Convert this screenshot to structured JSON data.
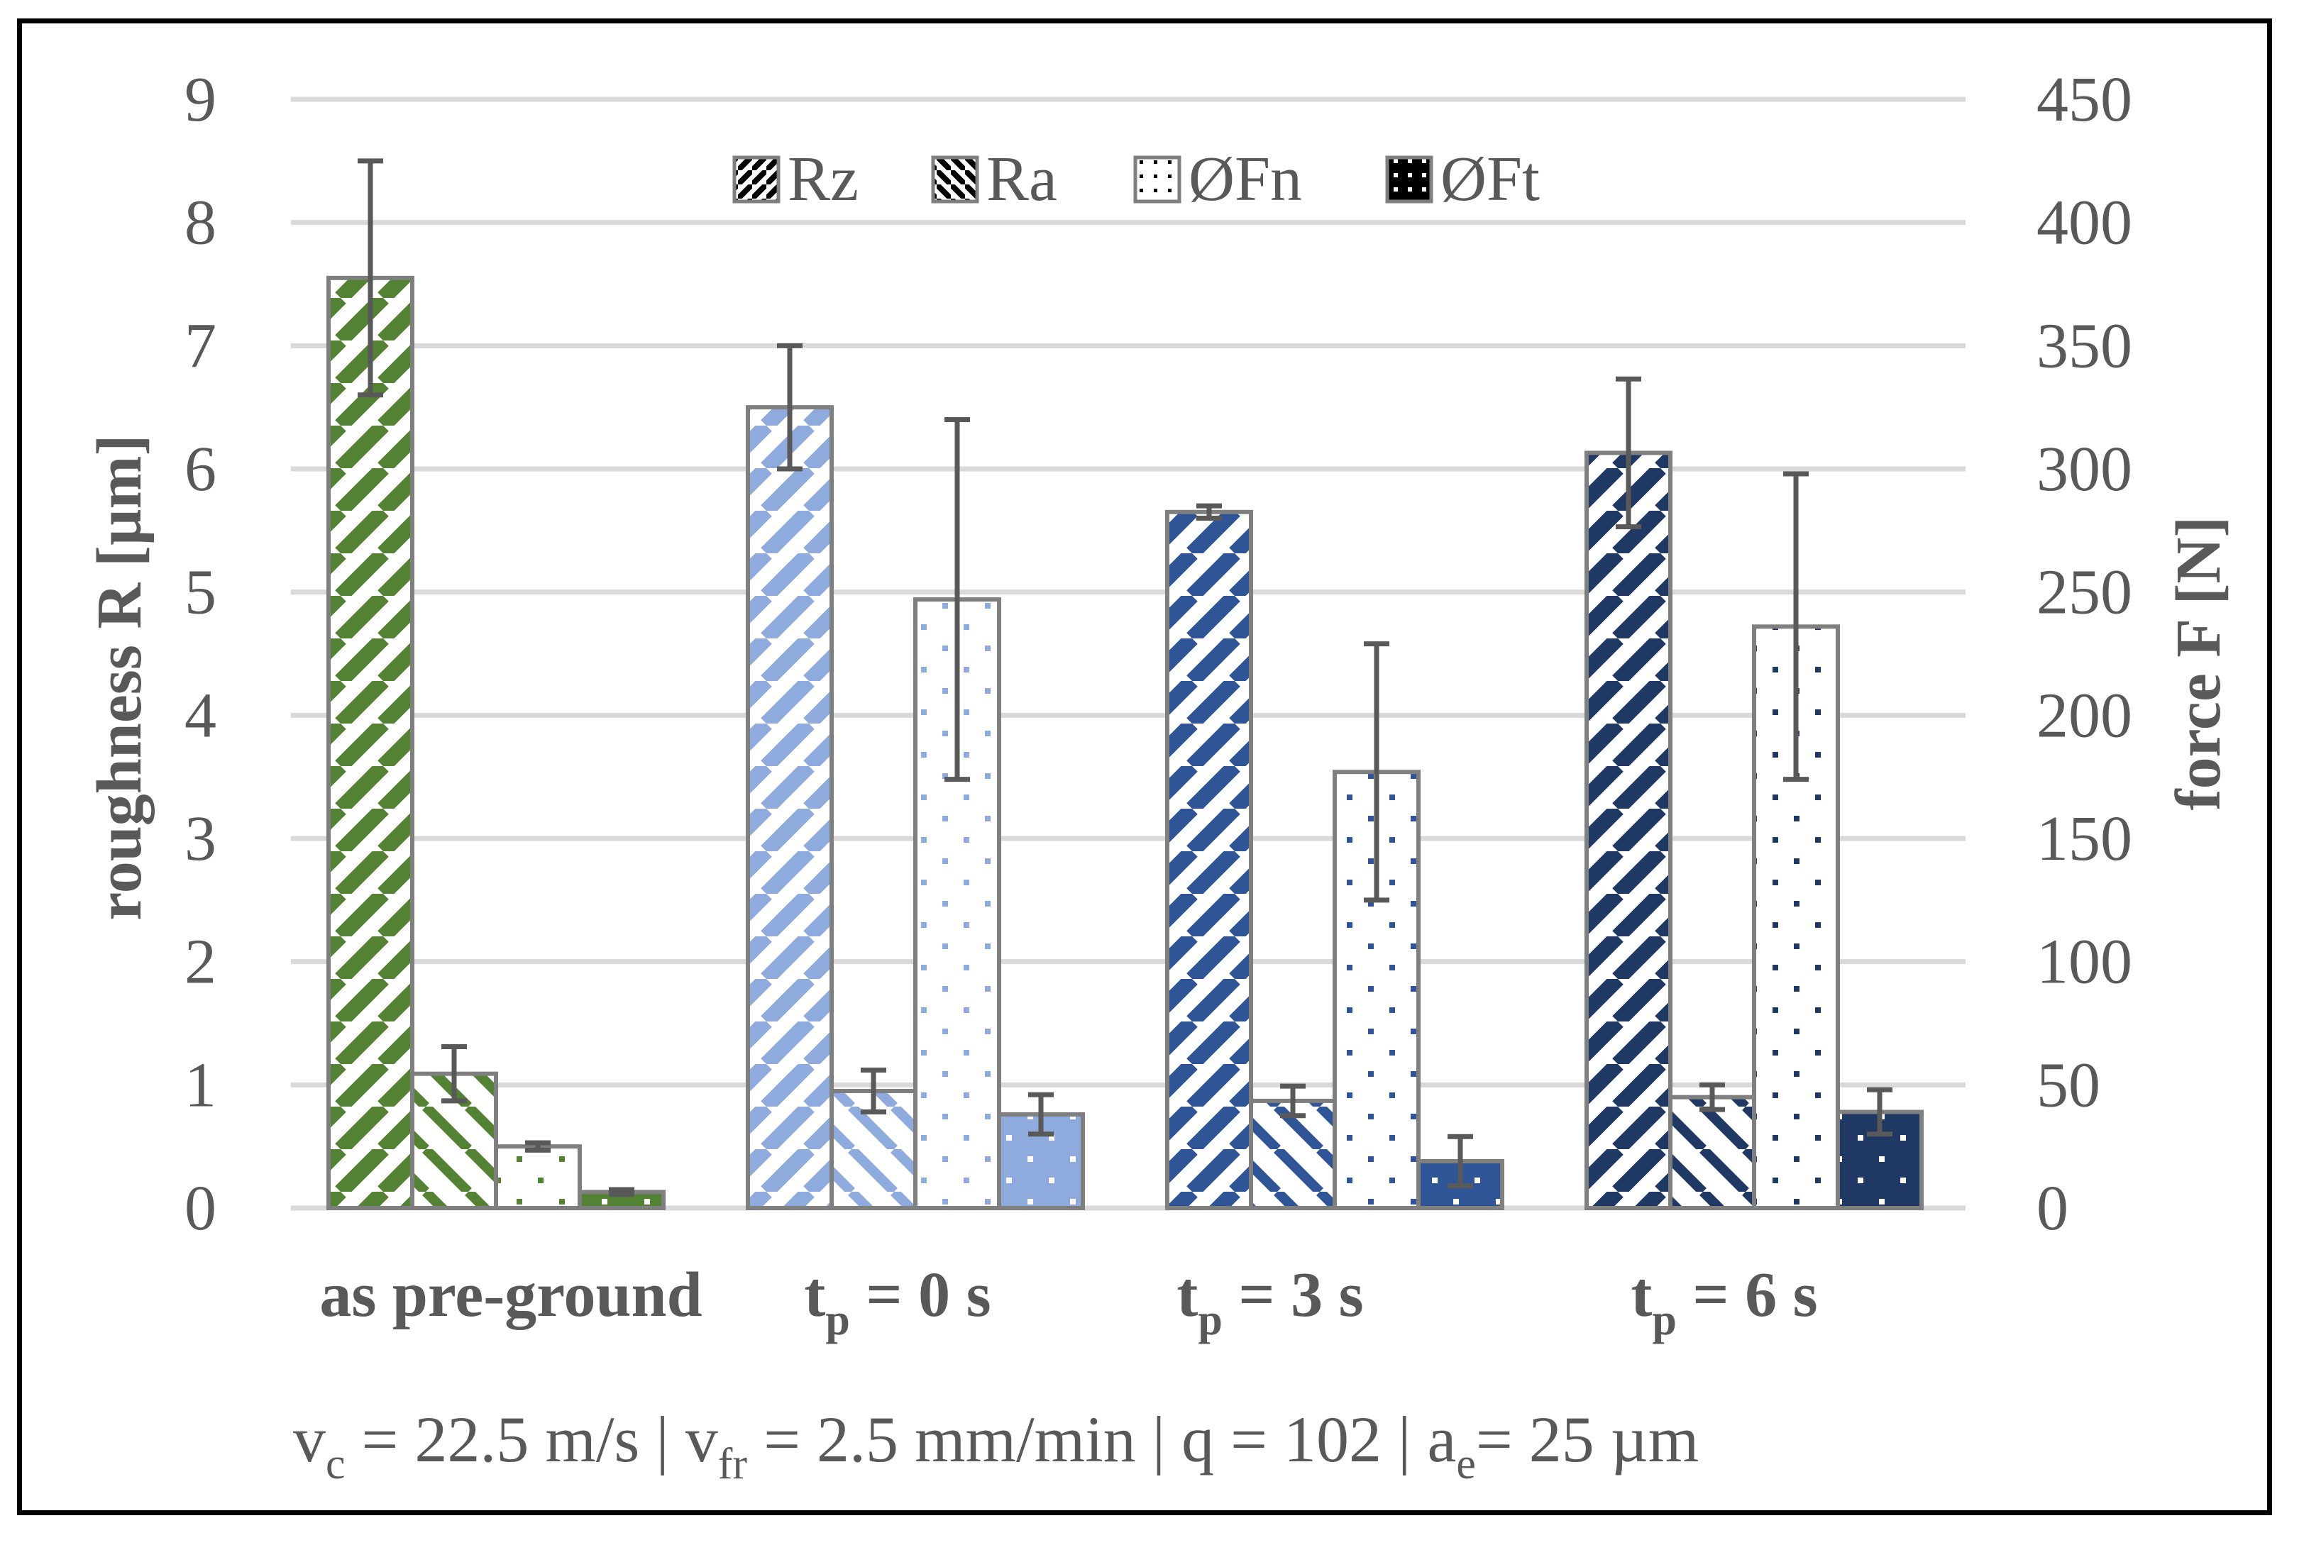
{
  "chart_data": {
    "type": "bar",
    "categories": [
      {
        "main": "as pre-ground",
        "sub": ""
      },
      {
        "main": "t",
        "sub": "p",
        "rest": " = 0 s"
      },
      {
        "main": "t",
        "sub": "p",
        "rest": " = 3 s"
      },
      {
        "main": "t",
        "sub": "p",
        "rest": " = 6 s"
      }
    ],
    "series": [
      {
        "name": "Rz",
        "axis": "left",
        "pattern": "diagonal",
        "values": [
          7.55,
          6.5,
          5.65,
          6.13
        ],
        "errors": [
          0.95,
          0.5,
          0.05,
          0.6
        ]
      },
      {
        "name": "Ra",
        "axis": "left",
        "pattern": "chevron",
        "values": [
          1.09,
          0.95,
          0.87,
          0.9
        ],
        "errors": [
          0.22,
          0.17,
          0.12,
          0.1
        ]
      },
      {
        "name": "ØFn",
        "axis": "right",
        "pattern": "dots",
        "values": [
          25,
          247,
          177,
          236
        ],
        "errors": [
          1.5,
          73,
          52,
          62
        ]
      },
      {
        "name": "ØFt",
        "axis": "right",
        "pattern": "solid-dots",
        "values": [
          6.5,
          38,
          19,
          39
        ],
        "errors": [
          1,
          8,
          10,
          9
        ]
      }
    ],
    "category_colors": [
      "#548235",
      "#8FAADC",
      "#2F5597",
      "#203864"
    ],
    "ylabel": "roughness R [µm]",
    "y2label": "force F [N]",
    "ylim": [
      0,
      9
    ],
    "y2lim": [
      0,
      450
    ],
    "yticks": [
      "0",
      "1",
      "2",
      "3",
      "4",
      "5",
      "6",
      "7",
      "8",
      "9"
    ],
    "y2ticks": [
      "0",
      "50",
      "100",
      "150",
      "200",
      "250",
      "300",
      "350",
      "400",
      "450"
    ],
    "grid": true,
    "legend_position": "top-center",
    "error_bar_color": "#595959"
  },
  "footnote": {
    "vc": "v",
    "vc_sub": "c",
    "vc_rest": " = 22.5 m/s | v",
    "vfr_sub": "fr",
    "vfr_rest": " = 2.5 mm/min | q = 102 | a",
    "ae_sub": "e",
    "ae_rest": "= 25 µm"
  }
}
